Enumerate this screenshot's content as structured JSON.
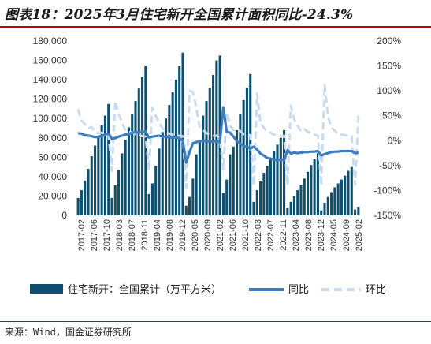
{
  "title": "图表18：2025年3月住宅新开全国累计面积同比-24.3%",
  "source": "来源：Wind，国金证券研究所",
  "colors": {
    "bars": "#0f4f6e",
    "yoy": "#3d7dbf",
    "mom": "#c9dcef",
    "rule": "#c40000"
  },
  "chart_data": {
    "type": "bar",
    "title": "图表18：2025年3月住宅新开全国累计面积同比-24.3%",
    "x_tick_labels": [
      "2017-02",
      "2017-06",
      "2017-10",
      "2018-03",
      "2018-07",
      "2018-11",
      "2019-04",
      "2019-08",
      "2019-12",
      "2020-05",
      "2020-09",
      "2021-02",
      "2021-06",
      "2021-10",
      "2022-03",
      "2022-07",
      "2022-11",
      "2023-04",
      "2023-08",
      "2023-12",
      "2024-05",
      "2024-09",
      "2025-02"
    ],
    "y_left": {
      "ylim": [
        0,
        180000
      ],
      "ticks": [
        "0",
        "20,000",
        "40,000",
        "60,000",
        "80,000",
        "100,000",
        "120,000",
        "140,000",
        "160,000",
        "180,000"
      ]
    },
    "y_right": {
      "ylim": [
        -150,
        200
      ],
      "ticks": [
        "-150%",
        "-100%",
        "-50%",
        "0%",
        "50%",
        "100%",
        "150%",
        "200%"
      ]
    },
    "legend": {
      "position": "bottom",
      "entries": [
        "住宅新开：全国累计（万平方米）",
        "同比",
        "环比"
      ]
    },
    "series": [
      {
        "name": "住宅新开：全国累计（万平方米）",
        "type": "bar",
        "axis": "left",
        "values": [
          18000,
          26000,
          36000,
          48000,
          61000,
          72000,
          82000,
          93000,
          103000,
          115000,
          18000,
          31000,
          47000,
          64000,
          78000,
          91000,
          105000,
          118000,
          131000,
          143000,
          154000,
          22000,
          33000,
          51000,
          69000,
          86000,
          100000,
          114000,
          127000,
          140000,
          154000,
          168000,
          10000,
          19000,
          38000,
          63000,
          77000,
          103000,
          118000,
          132000,
          145000,
          160000,
          165000,
          23000,
          37000,
          63000,
          71000,
          88000,
          105000,
          119000,
          132000,
          146000,
          14000,
          26000,
          35000,
          44000,
          51000,
          59000,
          66000,
          73000,
          80000,
          88000,
          8000,
          14000,
          20000,
          26000,
          31000,
          38000,
          45000,
          52000,
          58000,
          64000,
          5000,
          13000,
          19000,
          24000,
          29000,
          33000,
          37000,
          41000,
          46000,
          50000,
          6000,
          9000
        ]
      },
      {
        "name": "同比",
        "type": "line",
        "axis": "right",
        "values": [
          15,
          14,
          11,
          10,
          9,
          7,
          8,
          9,
          12,
          14,
          4,
          5,
          8,
          10,
          12,
          13,
          16,
          17,
          17,
          18,
          18,
          6,
          8,
          9,
          10,
          8,
          8,
          7,
          6,
          7,
          4,
          0,
          -44,
          -23,
          -5,
          -3,
          -1,
          -1,
          -1,
          -2,
          -2,
          -1,
          -3,
          67,
          18,
          16,
          8,
          -1,
          -6,
          -11,
          -12,
          -16,
          -12,
          -18,
          -26,
          -30,
          -35,
          -36,
          -38,
          -39,
          -38,
          -39,
          -19,
          -26,
          -24,
          -25,
          -24,
          -23,
          -23,
          -22,
          -22,
          -21,
          -30,
          -27,
          -25,
          -23,
          -22,
          -22,
          -21,
          -21,
          -21,
          -21,
          -25,
          -24
        ]
      },
      {
        "name": "环比",
        "type": "line",
        "axis": "right",
        "values": [
          63,
          41,
          33,
          25,
          27,
          18,
          15,
          16,
          15,
          13,
          -61,
          80,
          54,
          35,
          22,
          17,
          17,
          13,
          12,
          9,
          8,
          -60,
          66,
          50,
          36,
          25,
          17,
          14,
          12,
          10,
          10,
          9,
          -95,
          100,
          98,
          66,
          28,
          22,
          15,
          12,
          10,
          10,
          5,
          -58,
          57,
          30,
          21,
          21,
          19,
          13,
          12,
          11,
          -90,
          95,
          36,
          26,
          18,
          16,
          12,
          10,
          9,
          10,
          -90,
          70,
          43,
          30,
          19,
          23,
          18,
          16,
          12,
          10,
          -90,
          112,
          48,
          26,
          20,
          14,
          12,
          11,
          10,
          9,
          -88,
          50
        ]
      }
    ]
  }
}
